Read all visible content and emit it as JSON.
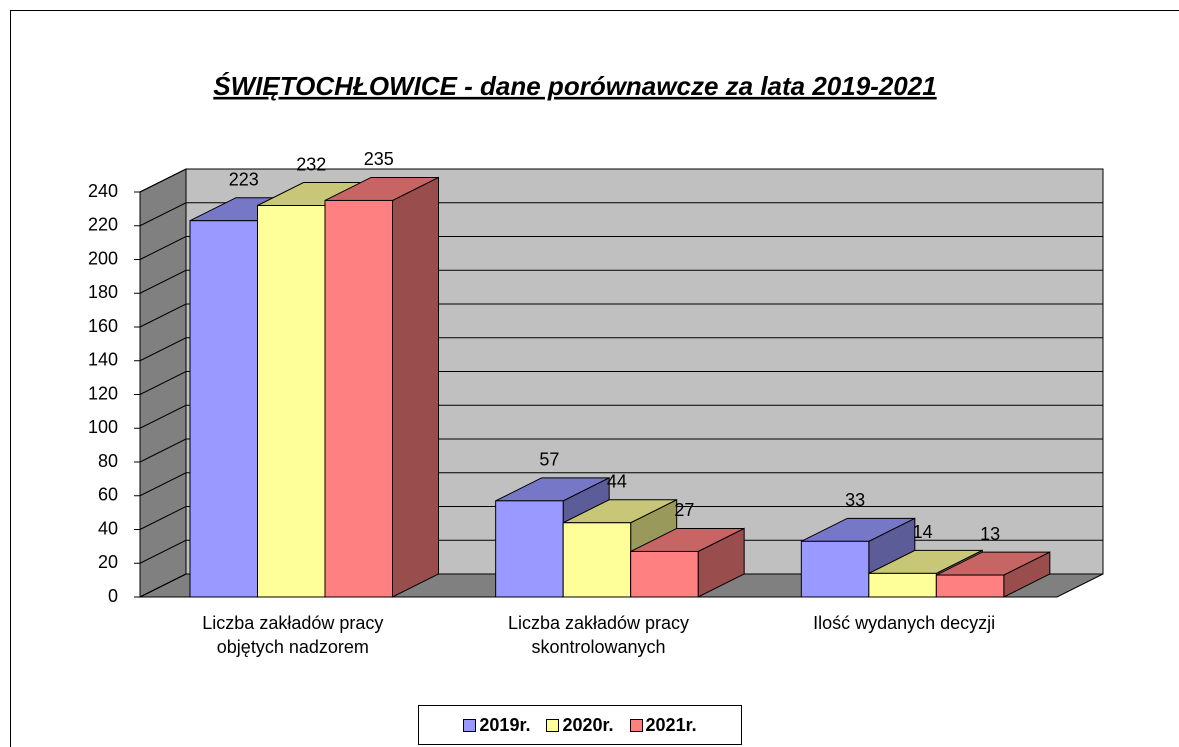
{
  "chart_data": {
    "type": "bar3d",
    "title": "ŚWIĘTOCHŁOWICE - dane  porównawcze  za  lata  2019-2021",
    "categories": [
      "Liczba zakładów pracy objętych nadzorem",
      "Liczba zakładów pracy skontrolowanych",
      "Ilość wydanych decyzji"
    ],
    "series": [
      {
        "name": "2019r.",
        "color": "#9999ff",
        "values": [
          223,
          57,
          33
        ]
      },
      {
        "name": "2020r.",
        "color": "#ffff99",
        "values": [
          232,
          44,
          14
        ]
      },
      {
        "name": "2021r.",
        "color": "#ff8080",
        "values": [
          235,
          27,
          13
        ]
      }
    ],
    "ylim": [
      0,
      240
    ],
    "yticks": [
      0,
      20,
      40,
      60,
      80,
      100,
      120,
      140,
      160,
      180,
      200,
      220,
      240
    ],
    "grid": true
  }
}
